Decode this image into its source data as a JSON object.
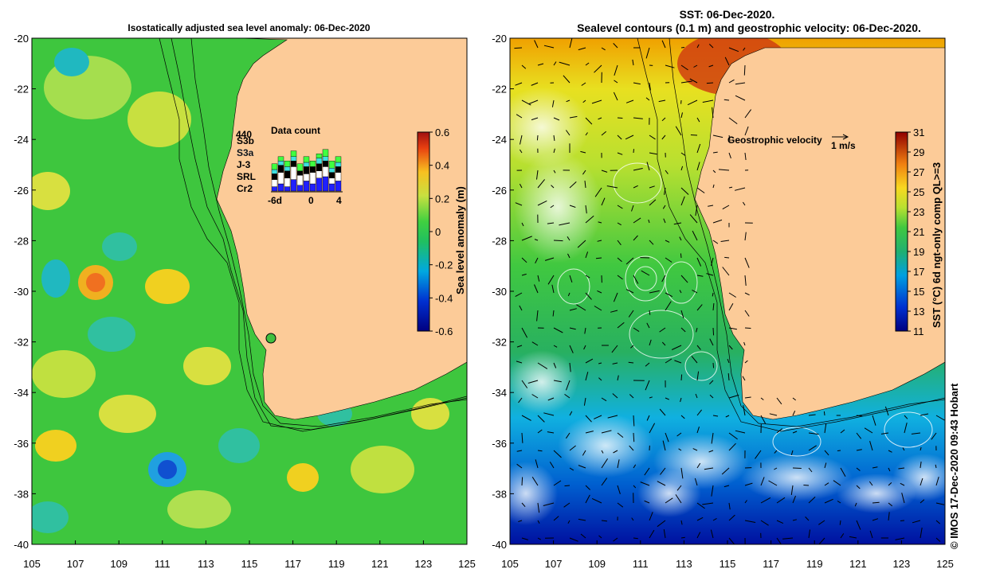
{
  "left_map": {
    "title": "Isostatically adjusted sea level anomaly: 06-Dec-2020",
    "colorbar": {
      "label": "Sea level anomaly (m)",
      "ticks": [
        "0.6",
        "0.4",
        "0.2",
        "0",
        "-0.2",
        "-0.4",
        "-0.6"
      ],
      "min": -0.6,
      "max": 0.6
    },
    "data_count": {
      "title": "Data count",
      "max_label": "440",
      "missions": [
        {
          "name": "S3b",
          "color": "#2020ff"
        },
        {
          "name": "S3a",
          "color": "#ffffff"
        },
        {
          "name": "J-3",
          "color": "#000000"
        },
        {
          "name": "SRL",
          "color": "#40e0e0"
        },
        {
          "name": "Cr2",
          "color": "#40ff40"
        }
      ],
      "x_labels": [
        "-6d",
        "0",
        "4"
      ]
    }
  },
  "right_map": {
    "title_line1": "SST: 06-Dec-2020.",
    "title_line2": "Sealevel contours (0.1 m) and geostrophic velocity: 06-Dec-2020.",
    "colorbar": {
      "label": "SST (°C) 6d ngt-only comp QL>=3",
      "ticks": [
        "31",
        "29",
        "27",
        "25",
        "23",
        "21",
        "19",
        "17",
        "15",
        "13",
        "11"
      ],
      "min": 11,
      "max": 31
    },
    "velocity_legend": {
      "label": "Geostrophic velocity",
      "scale": "1 m/s"
    }
  },
  "axes": {
    "x_ticks": [
      "105",
      "107",
      "109",
      "111",
      "113",
      "115",
      "117",
      "119",
      "121",
      "123",
      "125"
    ],
    "y_ticks": [
      "-20",
      "-22",
      "-24",
      "-26",
      "-28",
      "-30",
      "-32",
      "-34",
      "-36",
      "-38",
      "-40"
    ],
    "lon_range": [
      105,
      125
    ],
    "lat_range": [
      -40,
      -20
    ]
  },
  "credit": "© IMOS 17-Dec-2020 09:43 Hobart",
  "colors": {
    "land": "#fccb98",
    "ocean_green": "#3ec63e",
    "ocean_yellow": "#d8e83a"
  }
}
